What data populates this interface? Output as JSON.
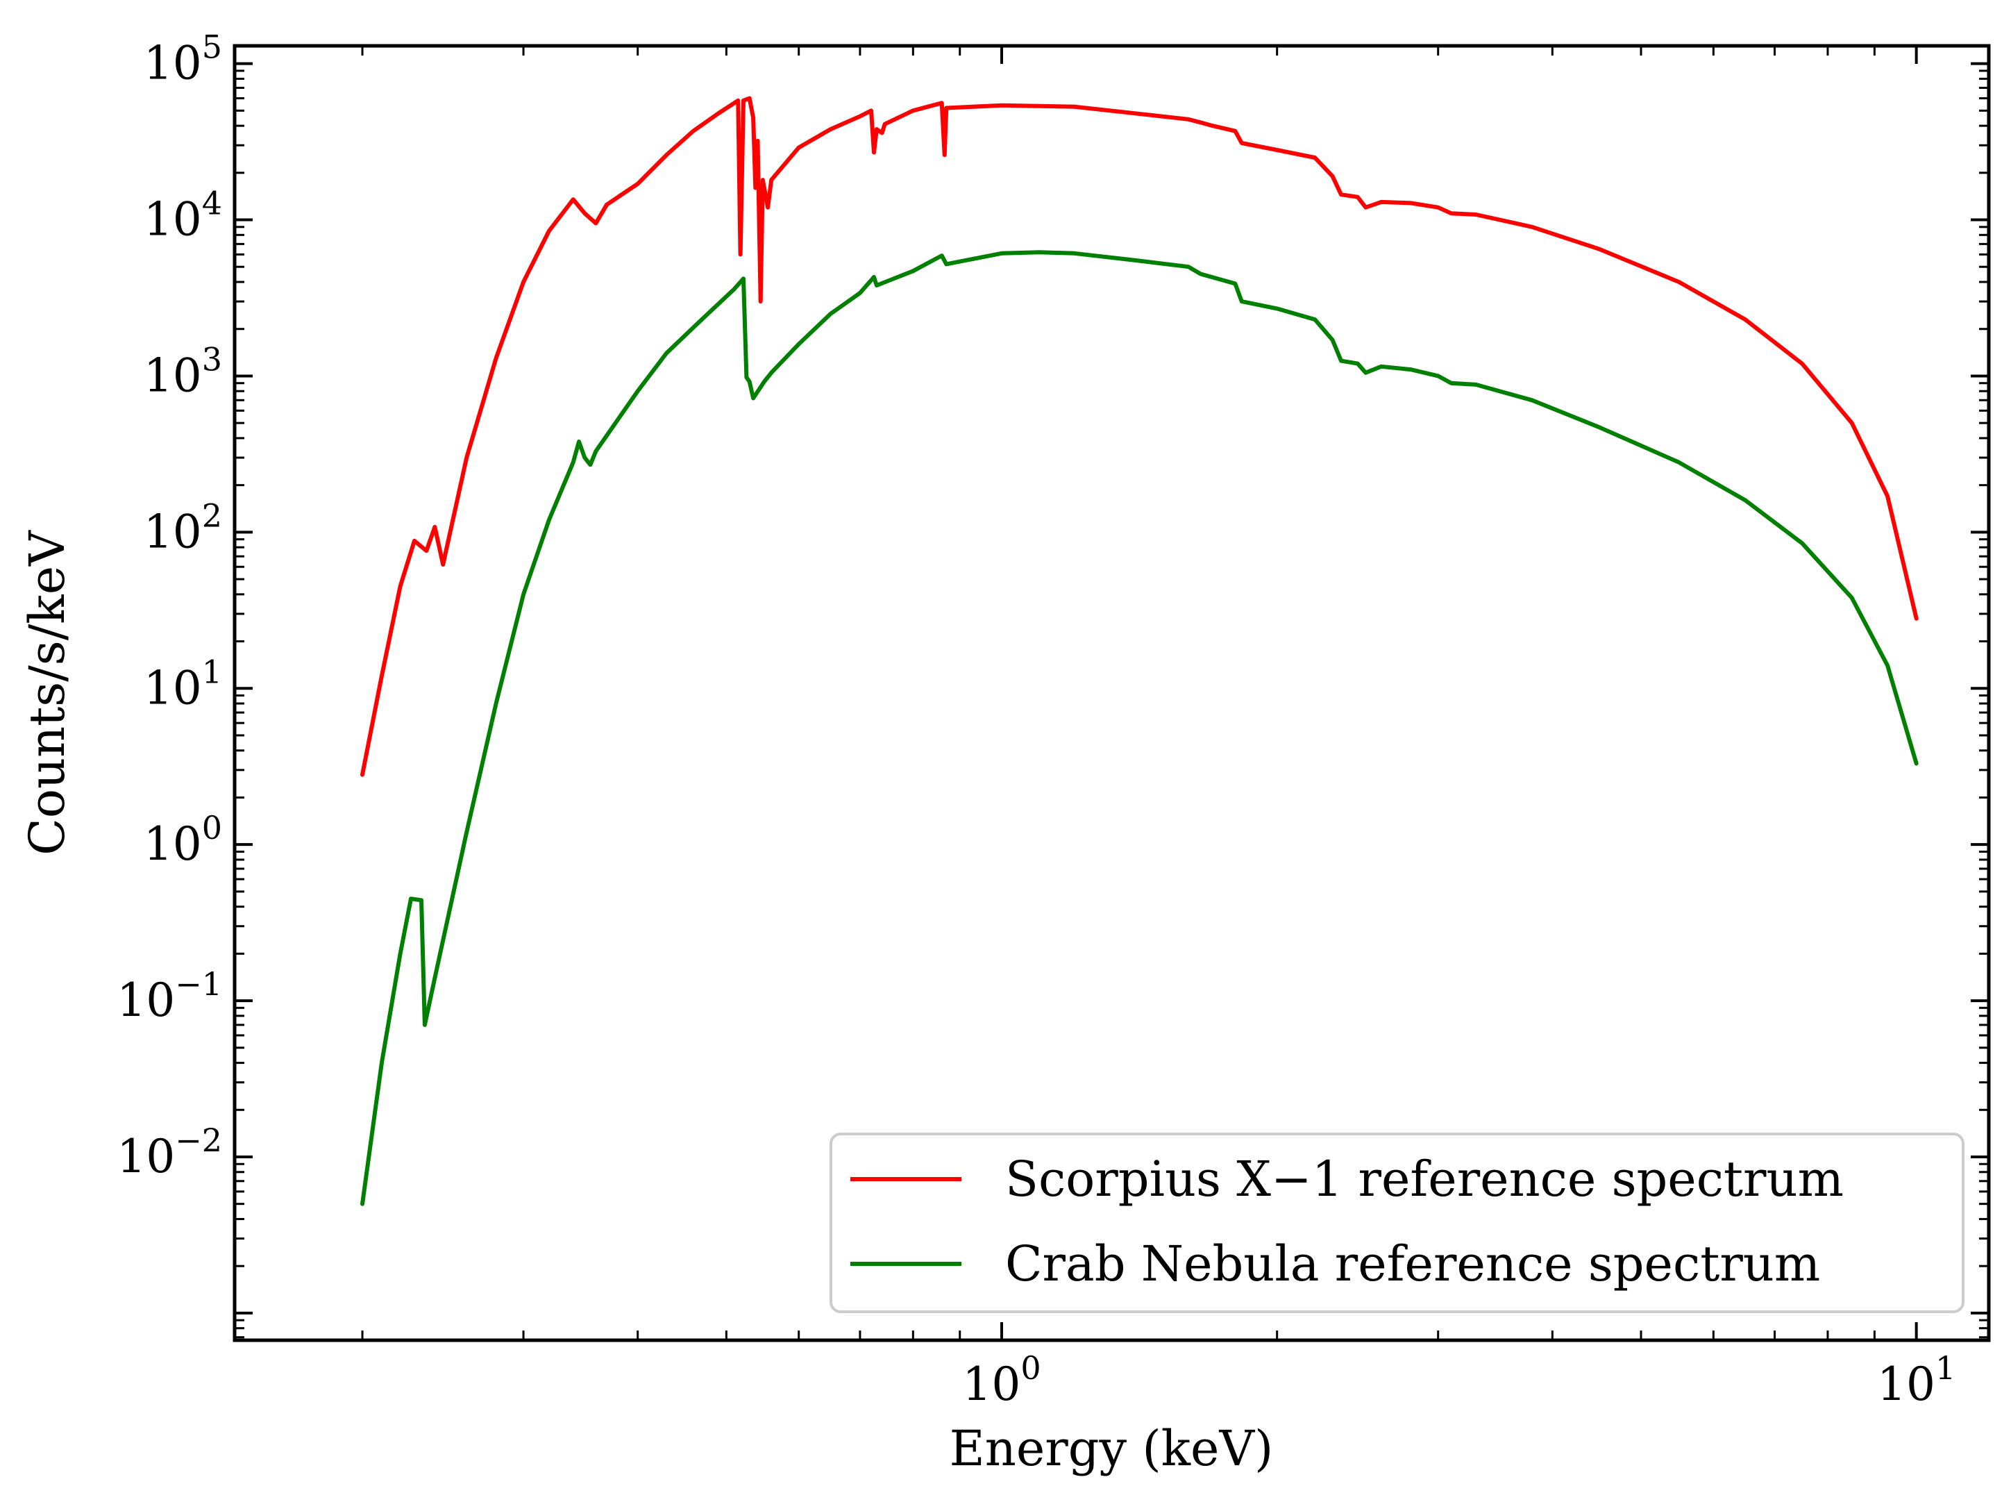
{
  "chart_data": {
    "type": "line",
    "title": "",
    "xlabel": "Energy (keV)",
    "ylabel": "Counts/s/keV",
    "xscale": "log",
    "yscale": "log",
    "xlim": [
      0.145,
      12.0
    ],
    "ylim": [
      0.00067,
      130000
    ],
    "x_ticks": [
      {
        "value": 1,
        "base": "10",
        "exp": "0"
      },
      {
        "value": 10,
        "base": "10",
        "exp": "1"
      }
    ],
    "y_ticks": [
      {
        "value": 0.01,
        "base": "10",
        "exp": "−2"
      },
      {
        "value": 0.1,
        "base": "10",
        "exp": "−1"
      },
      {
        "value": 1,
        "base": "10",
        "exp": "0"
      },
      {
        "value": 10,
        "base": "10",
        "exp": "1"
      },
      {
        "value": 100,
        "base": "10",
        "exp": "2"
      },
      {
        "value": 1000,
        "base": "10",
        "exp": "3"
      },
      {
        "value": 10000,
        "base": "10",
        "exp": "4"
      },
      {
        "value": 100000,
        "base": "10",
        "exp": "5"
      }
    ],
    "grid": false,
    "legend_position": "lower-right",
    "series": [
      {
        "name": "Scorpius X−1 reference spectrum",
        "color": "#ff0000",
        "points": [
          [
            0.2,
            2.8
          ],
          [
            0.21,
            12
          ],
          [
            0.22,
            45
          ],
          [
            0.228,
            88
          ],
          [
            0.235,
            76
          ],
          [
            0.24,
            108
          ],
          [
            0.245,
            62
          ],
          [
            0.26,
            300
          ],
          [
            0.28,
            1300
          ],
          [
            0.3,
            4000
          ],
          [
            0.32,
            8500
          ],
          [
            0.34,
            13500
          ],
          [
            0.35,
            11000
          ],
          [
            0.36,
            9500
          ],
          [
            0.37,
            12500
          ],
          [
            0.4,
            17000
          ],
          [
            0.43,
            26000
          ],
          [
            0.46,
            37000
          ],
          [
            0.49,
            48000
          ],
          [
            0.515,
            58000
          ],
          [
            0.518,
            6000
          ],
          [
            0.522,
            58000
          ],
          [
            0.53,
            60000
          ],
          [
            0.535,
            45000
          ],
          [
            0.538,
            16000
          ],
          [
            0.541,
            32000
          ],
          [
            0.545,
            3000
          ],
          [
            0.548,
            18000
          ],
          [
            0.555,
            12000
          ],
          [
            0.56,
            18000
          ],
          [
            0.6,
            29000
          ],
          [
            0.65,
            38000
          ],
          [
            0.7,
            46000
          ],
          [
            0.72,
            50000
          ],
          [
            0.725,
            27000
          ],
          [
            0.73,
            38000
          ],
          [
            0.74,
            36000
          ],
          [
            0.745,
            41000
          ],
          [
            0.8,
            50000
          ],
          [
            0.86,
            56000
          ],
          [
            0.866,
            26000
          ],
          [
            0.87,
            52000
          ],
          [
            1.0,
            54000
          ],
          [
            1.2,
            53000
          ],
          [
            1.4,
            48000
          ],
          [
            1.6,
            44000
          ],
          [
            1.65,
            42000
          ],
          [
            1.7,
            40000
          ],
          [
            1.8,
            37000
          ],
          [
            1.83,
            31000
          ],
          [
            2.0,
            28000
          ],
          [
            2.2,
            25000
          ],
          [
            2.3,
            19000
          ],
          [
            2.35,
            14500
          ],
          [
            2.45,
            14000
          ],
          [
            2.5,
            12000
          ],
          [
            2.6,
            13000
          ],
          [
            2.8,
            12800
          ],
          [
            3.0,
            12000
          ],
          [
            3.1,
            11000
          ],
          [
            3.3,
            10800
          ],
          [
            3.8,
            9000
          ],
          [
            4.5,
            6500
          ],
          [
            5.5,
            4000
          ],
          [
            6.5,
            2300
          ],
          [
            7.5,
            1200
          ],
          [
            8.5,
            500
          ],
          [
            9.3,
            170
          ],
          [
            10.0,
            28
          ]
        ]
      },
      {
        "name": "Crab Nebula reference spectrum",
        "color": "#008000",
        "points": [
          [
            0.2,
            0.005
          ],
          [
            0.21,
            0.04
          ],
          [
            0.22,
            0.2
          ],
          [
            0.226,
            0.45
          ],
          [
            0.232,
            0.44
          ],
          [
            0.234,
            0.07
          ],
          [
            0.24,
            0.14
          ],
          [
            0.26,
            1.2
          ],
          [
            0.28,
            8
          ],
          [
            0.3,
            40
          ],
          [
            0.32,
            120
          ],
          [
            0.34,
            280
          ],
          [
            0.345,
            380
          ],
          [
            0.35,
            300
          ],
          [
            0.355,
            270
          ],
          [
            0.36,
            330
          ],
          [
            0.4,
            800
          ],
          [
            0.43,
            1400
          ],
          [
            0.47,
            2300
          ],
          [
            0.51,
            3600
          ],
          [
            0.522,
            4200
          ],
          [
            0.526,
            980
          ],
          [
            0.53,
            920
          ],
          [
            0.535,
            720
          ],
          [
            0.55,
            920
          ],
          [
            0.56,
            1050
          ],
          [
            0.6,
            1600
          ],
          [
            0.65,
            2500
          ],
          [
            0.7,
            3400
          ],
          [
            0.725,
            4300
          ],
          [
            0.73,
            3800
          ],
          [
            0.8,
            4700
          ],
          [
            0.86,
            5900
          ],
          [
            0.87,
            5200
          ],
          [
            1.0,
            6100
          ],
          [
            1.1,
            6200
          ],
          [
            1.2,
            6100
          ],
          [
            1.4,
            5500
          ],
          [
            1.6,
            5000
          ],
          [
            1.65,
            4500
          ],
          [
            1.8,
            3900
          ],
          [
            1.83,
            3000
          ],
          [
            2.0,
            2700
          ],
          [
            2.2,
            2300
          ],
          [
            2.3,
            1700
          ],
          [
            2.35,
            1250
          ],
          [
            2.45,
            1200
          ],
          [
            2.5,
            1050
          ],
          [
            2.6,
            1150
          ],
          [
            2.8,
            1100
          ],
          [
            3.0,
            1000
          ],
          [
            3.1,
            900
          ],
          [
            3.3,
            880
          ],
          [
            3.8,
            700
          ],
          [
            4.5,
            470
          ],
          [
            5.5,
            280
          ],
          [
            6.5,
            160
          ],
          [
            7.5,
            85
          ],
          [
            8.5,
            38
          ],
          [
            9.3,
            14
          ],
          [
            10.0,
            3.3
          ]
        ]
      }
    ]
  }
}
